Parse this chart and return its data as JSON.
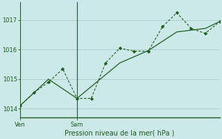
{
  "xlabel": "Pression niveau de la mer( hPa )",
  "background_color": "#cce8e8",
  "plot_bg_color": "#cce8e8",
  "grid_color": "#aacaca",
  "line_color": "#1a5c1a",
  "ylim": [
    1013.7,
    1017.6
  ],
  "yticks": [
    1014,
    1015,
    1016,
    1017
  ],
  "xlim": [
    0,
    14
  ],
  "ven_x": 0,
  "sam_x": 4,
  "series1_x": [
    0,
    1,
    2,
    3,
    4,
    5,
    6,
    7,
    8,
    9,
    10,
    11,
    12,
    13,
    14
  ],
  "series1_y": [
    1014.1,
    1014.55,
    1014.9,
    1015.35,
    1014.35,
    1014.35,
    1015.55,
    1016.05,
    1015.95,
    1015.95,
    1016.78,
    1017.25,
    1016.72,
    1016.55,
    1016.95
  ],
  "series2_x": [
    0,
    2,
    4,
    7,
    9,
    11,
    13,
    14
  ],
  "series2_y": [
    1014.1,
    1015.0,
    1014.35,
    1015.55,
    1015.97,
    1016.6,
    1016.72,
    1016.95
  ]
}
